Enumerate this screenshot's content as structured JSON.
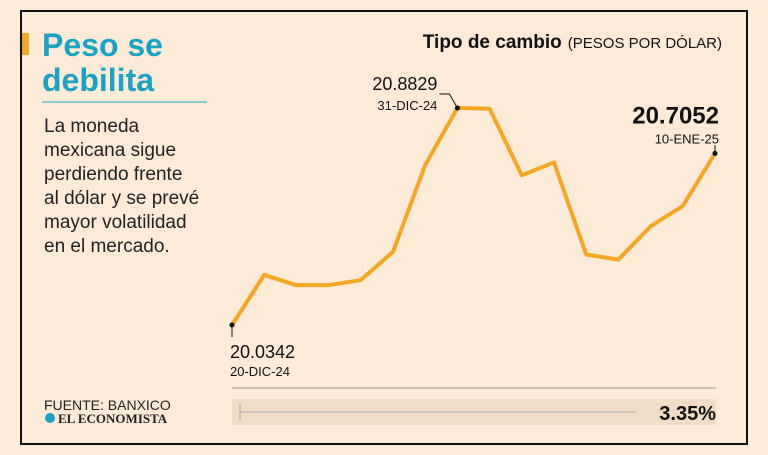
{
  "header": {
    "headline": [
      "Peso se",
      "debilita"
    ],
    "description": [
      "La moneda",
      "mexicana sigue",
      "perdiendo frente",
      "al dólar y se prevé",
      "mayor volatilidad",
      "en el mercado."
    ]
  },
  "chart_data": {
    "type": "line",
    "title": "Tipo de cambio",
    "subtitle": "(PESOS POR DÓLAR)",
    "categories": [
      "20-DIC-24",
      null,
      null,
      null,
      null,
      null,
      null,
      "31-DIC-24",
      null,
      null,
      null,
      null,
      null,
      null,
      null,
      "10-ENE-25"
    ],
    "series": [
      {
        "name": "Tipo de cambio",
        "color": "#f5a623",
        "values": [
          20.0342,
          20.23,
          20.19,
          20.19,
          20.21,
          20.32,
          20.66,
          20.8829,
          20.88,
          20.62,
          20.67,
          20.31,
          20.29,
          20.42,
          20.5,
          20.7052
        ]
      }
    ],
    "change": "3.35%"
  },
  "footer": {
    "source": "FUENTE: BANXICO",
    "brand": "EL ECONOMISTA"
  }
}
